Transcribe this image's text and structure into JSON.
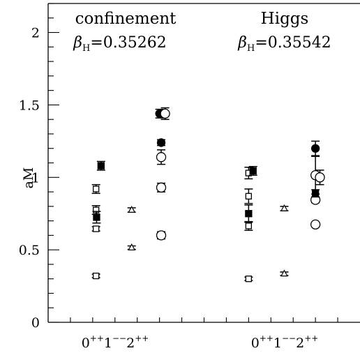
{
  "chart_data": {
    "type": "scatter",
    "ylabel": "aM",
    "ylim": [
      0,
      2.2
    ],
    "yticks_major": [
      "0",
      "0.5",
      "1",
      "1.5",
      "2"
    ],
    "grid": false,
    "panels": [
      {
        "title": "confinement",
        "beta_symbol": "β",
        "beta_sub": "H",
        "beta_value": "=0.35262",
        "jpc_labels": [
          {
            "base": "0",
            "sup": "++"
          },
          {
            "base": "1",
            "sup": "−−"
          },
          {
            "base": "2",
            "sup": "++"
          }
        ],
        "points": [
          {
            "channel": "0++",
            "x": 0.86,
            "y": 0.32,
            "err": 0.012,
            "marker": "open-square"
          },
          {
            "channel": "0++",
            "x": 0.86,
            "y": 0.645,
            "err": 0.015,
            "marker": "open-square"
          },
          {
            "channel": "0++",
            "x": 0.86,
            "y": 0.775,
            "err": 0.03,
            "marker": "open-square"
          },
          {
            "channel": "0++",
            "x": 0.86,
            "y": 0.92,
            "err": 0.03,
            "marker": "open-square"
          },
          {
            "channel": "0++",
            "x": 0.87,
            "y": 0.725,
            "err": 0.04,
            "marker": "filled-square"
          },
          {
            "channel": "0++",
            "x": 0.95,
            "y": 1.08,
            "err": 0.03,
            "marker": "filled-square"
          },
          {
            "channel": "1--",
            "x": 1.5,
            "y": 0.515,
            "err": 0.012,
            "marker": "open-triangle"
          },
          {
            "channel": "1--",
            "x": 1.5,
            "y": 0.775,
            "err": 0.015,
            "marker": "open-triangle"
          },
          {
            "channel": "2++",
            "x": 2.03,
            "y": 0.6,
            "err": 0.025,
            "marker": "open-circle"
          },
          {
            "channel": "2++",
            "x": 2.03,
            "y": 0.93,
            "err": 0.03,
            "marker": "open-circle"
          },
          {
            "channel": "2++",
            "x": 2.03,
            "y": 1.14,
            "err": 0.05,
            "marker": "open-circle"
          },
          {
            "channel": "2++",
            "x": 2.03,
            "y": 1.24,
            "err": 0.02,
            "marker": "filled-circle"
          },
          {
            "channel": "2++",
            "x": 2.0,
            "y": 1.44,
            "err": 0.03,
            "marker": "filled-circle"
          },
          {
            "channel": "2++",
            "x": 2.1,
            "y": 1.44,
            "err": 0.04,
            "marker": "open-circle"
          }
        ]
      },
      {
        "title": "Higgs",
        "beta_symbol": "β",
        "beta_sub": "H",
        "beta_value": "=0.35542",
        "jpc_labels": [
          {
            "base": "0",
            "sup": "++"
          },
          {
            "base": "1",
            "sup": "−−"
          },
          {
            "base": "2",
            "sup": "++"
          }
        ],
        "points": [
          {
            "channel": "0++",
            "x": 3.6,
            "y": 0.3,
            "err": 0.012,
            "marker": "open-square"
          },
          {
            "channel": "0++",
            "x": 3.6,
            "y": 0.665,
            "err": 0.03,
            "marker": "open-square"
          },
          {
            "channel": "0++",
            "x": 3.6,
            "y": 0.87,
            "err": 0.05,
            "marker": "open-square"
          },
          {
            "channel": "0++",
            "x": 3.6,
            "y": 1.03,
            "err": 0.04,
            "marker": "open-square"
          },
          {
            "channel": "0++",
            "x": 3.6,
            "y": 0.75,
            "err": 0.06,
            "marker": "filled-square"
          },
          {
            "channel": "0++",
            "x": 3.68,
            "y": 1.045,
            "err": 0.03,
            "marker": "filled-square"
          },
          {
            "channel": "1--",
            "x": 4.24,
            "y": 0.335,
            "err": 0.012,
            "marker": "open-triangle"
          },
          {
            "channel": "1--",
            "x": 4.24,
            "y": 0.785,
            "err": 0.015,
            "marker": "open-triangle"
          },
          {
            "channel": "2++",
            "x": 4.8,
            "y": 0.675,
            "err": 0.015,
            "marker": "open-circle"
          },
          {
            "channel": "2++",
            "x": 4.8,
            "y": 0.845,
            "err": 0.02,
            "marker": "open-circle"
          },
          {
            "channel": "2++",
            "x": 4.8,
            "y": 1.015,
            "err": 0.13,
            "marker": "open-circle"
          },
          {
            "channel": "2++",
            "x": 4.8,
            "y": 0.89,
            "err": 0.025,
            "marker": "filled-square"
          },
          {
            "channel": "2++",
            "x": 4.8,
            "y": 1.2,
            "err": 0.05,
            "marker": "filled-circle"
          },
          {
            "channel": "2++",
            "x": 4.88,
            "y": 1.0,
            "err": 0.05,
            "marker": "open-circle"
          }
        ]
      }
    ]
  }
}
